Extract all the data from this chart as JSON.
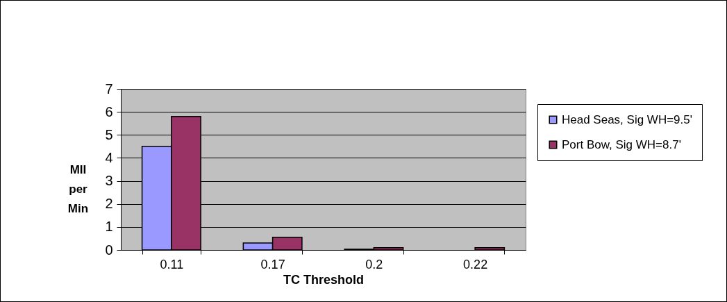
{
  "chart_data": {
    "type": "bar",
    "xlabel": "TC Threshold",
    "ylabel": "MII per Min",
    "categories": [
      "0.11",
      "0.17",
      "0.2",
      "0.22"
    ],
    "series": [
      {
        "name": "Head Seas, Sig WH=9.5'",
        "color": "#9999ff",
        "values": [
          4.5,
          0.3,
          0.03,
          null
        ]
      },
      {
        "name": "Port Bow, Sig WH=8.7'",
        "color": "#993366",
        "values": [
          5.8,
          0.55,
          0.1,
          0.1
        ]
      }
    ],
    "ylim": [
      0,
      7
    ],
    "yticks": [
      0,
      1,
      2,
      3,
      4,
      5,
      6,
      7
    ],
    "grid": "y",
    "legend": "right"
  }
}
